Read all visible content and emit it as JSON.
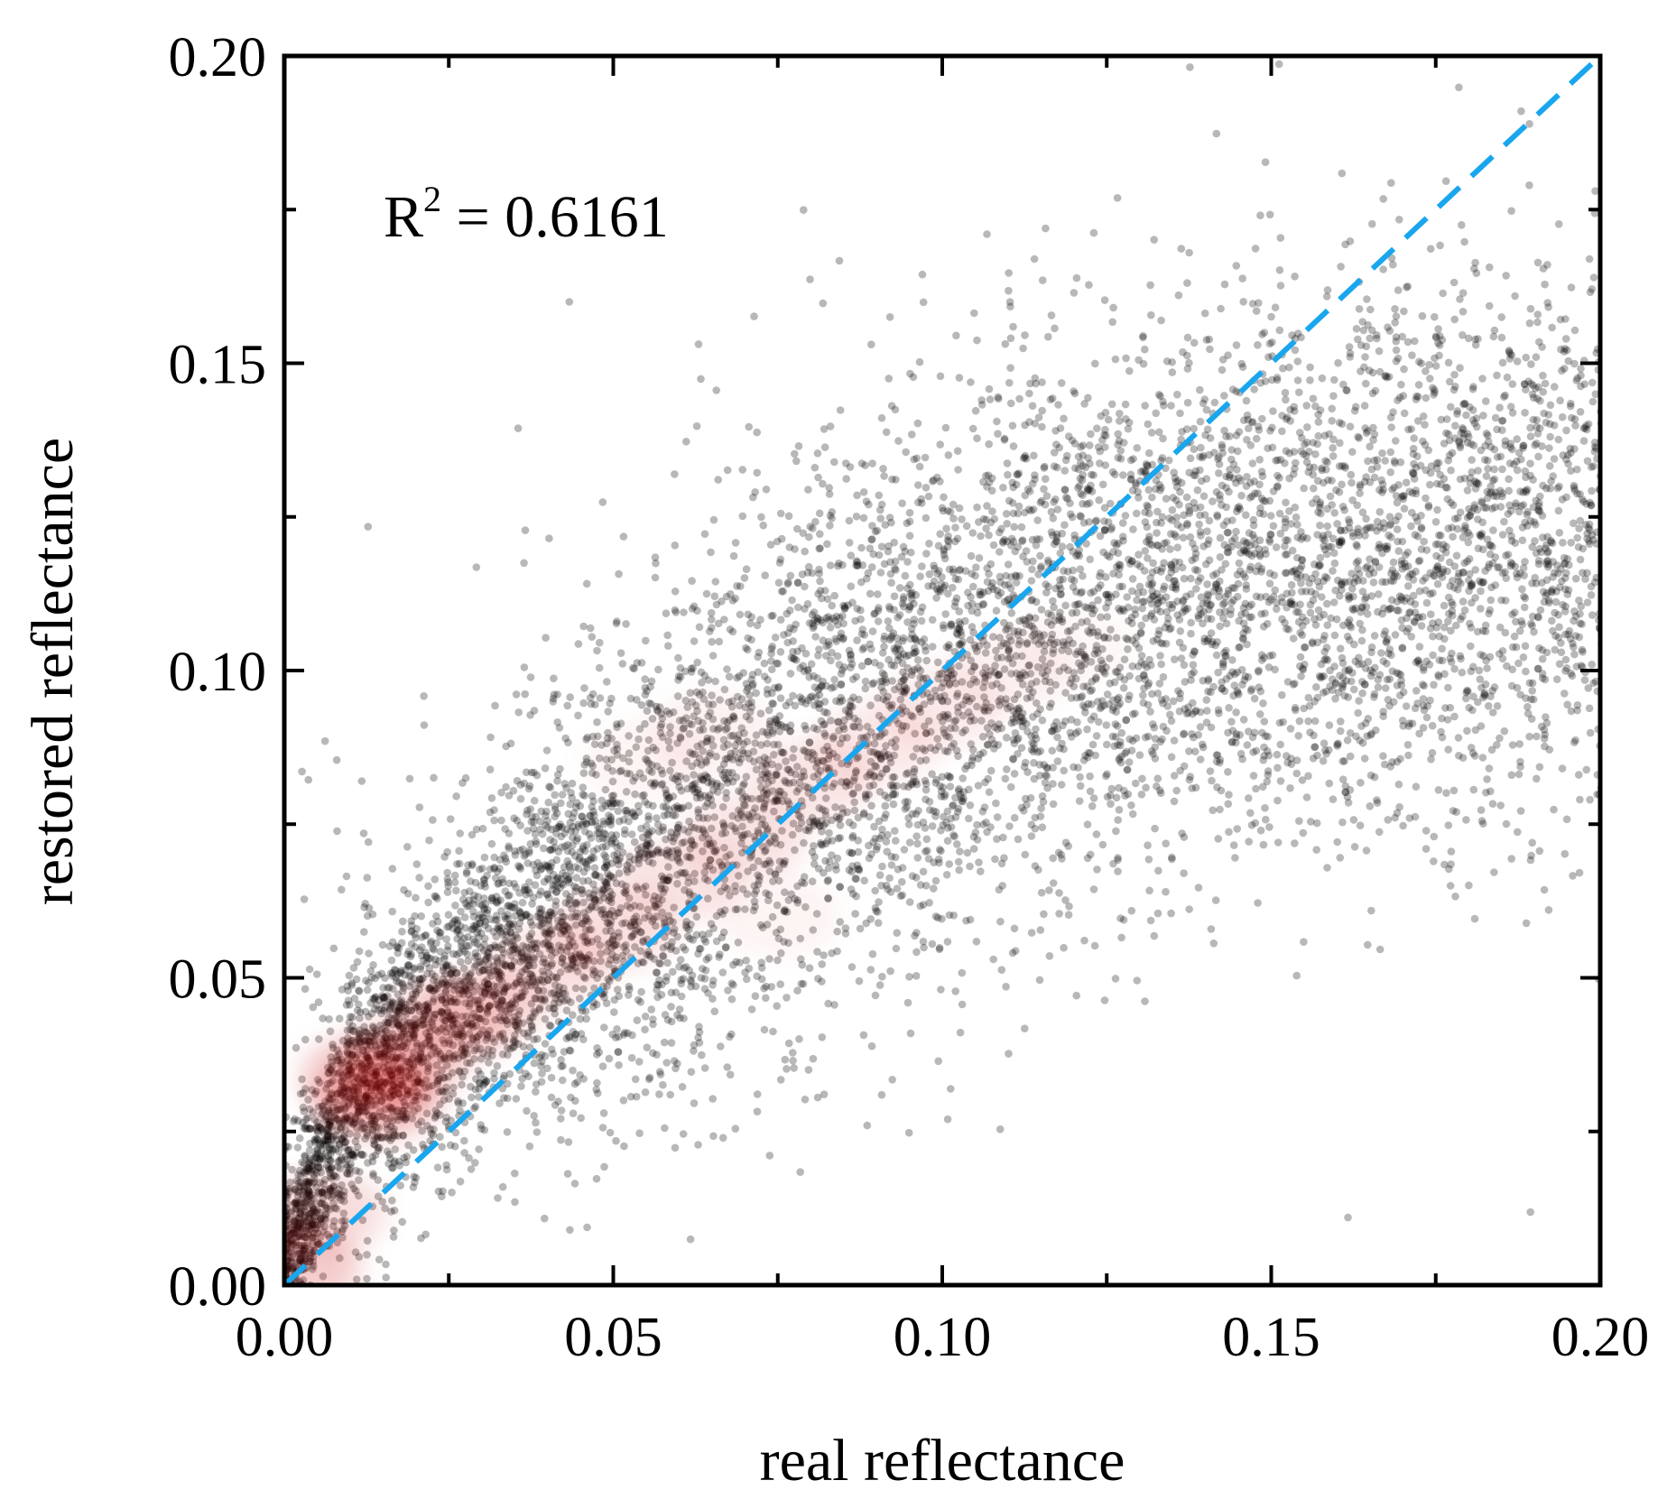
{
  "chart_data": {
    "type": "scatter",
    "title": "",
    "xlabel": "real reflectance",
    "ylabel": "restored reflectance",
    "xlim": [
      0.0,
      0.2
    ],
    "ylim": [
      0.0,
      0.2
    ],
    "xticks": [
      "0.00",
      "0.05",
      "0.10",
      "0.15",
      "0.20"
    ],
    "yticks": [
      "0.00",
      "0.05",
      "0.10",
      "0.15",
      "0.20"
    ],
    "grid": false,
    "annotation": {
      "prefix": "R",
      "superscript": "2",
      "suffix": " = 0.6161",
      "r_squared": 0.6161,
      "position": "top-left"
    },
    "reference_line": {
      "name": "1:1 line",
      "style": "dashed",
      "color": "#19a6ee",
      "points": [
        [
          0.0,
          0.0
        ],
        [
          0.2,
          0.2
        ]
      ]
    },
    "series": [
      {
        "name": "samples",
        "color": "#000000",
        "description_style": "semi-transparent gray dots",
        "trend_points": [
          [
            0.005,
            0.018
          ],
          [
            0.01,
            0.03
          ],
          [
            0.02,
            0.041
          ],
          [
            0.03,
            0.05
          ],
          [
            0.04,
            0.058
          ],
          [
            0.05,
            0.066
          ],
          [
            0.06,
            0.074
          ],
          [
            0.07,
            0.081
          ],
          [
            0.08,
            0.088
          ],
          [
            0.09,
            0.094
          ],
          [
            0.1,
            0.099
          ],
          [
            0.11,
            0.104
          ],
          [
            0.12,
            0.108
          ],
          [
            0.13,
            0.111
          ],
          [
            0.14,
            0.114
          ],
          [
            0.15,
            0.116
          ],
          [
            0.16,
            0.118
          ],
          [
            0.17,
            0.119
          ],
          [
            0.18,
            0.12
          ],
          [
            0.19,
            0.121
          ]
        ],
        "spread_sd": 0.018,
        "point_count": 9000
      },
      {
        "name": "density",
        "color": "#cc0000",
        "description_style": "red density overlay",
        "regions": [
          [
            0.014,
            0.03,
            1.0
          ],
          [
            0.012,
            0.034,
            0.9
          ],
          [
            0.018,
            0.036,
            0.85
          ],
          [
            0.025,
            0.043,
            0.7
          ],
          [
            0.03,
            0.045,
            0.6
          ],
          [
            0.04,
            0.052,
            0.55
          ],
          [
            0.05,
            0.058,
            0.55
          ],
          [
            0.06,
            0.066,
            0.5
          ],
          [
            0.07,
            0.073,
            0.5
          ],
          [
            0.08,
            0.082,
            0.45
          ],
          [
            0.09,
            0.088,
            0.4
          ],
          [
            0.1,
            0.094,
            0.35
          ],
          [
            0.11,
            0.1,
            0.25
          ],
          [
            0.12,
            0.104,
            0.15
          ],
          [
            0.002,
            0.003,
            0.9
          ],
          [
            0.006,
            0.012,
            0.6
          ],
          [
            0.065,
            0.09,
            0.25
          ],
          [
            0.055,
            0.085,
            0.2
          ],
          [
            0.075,
            0.06,
            0.2
          ]
        ]
      }
    ]
  }
}
